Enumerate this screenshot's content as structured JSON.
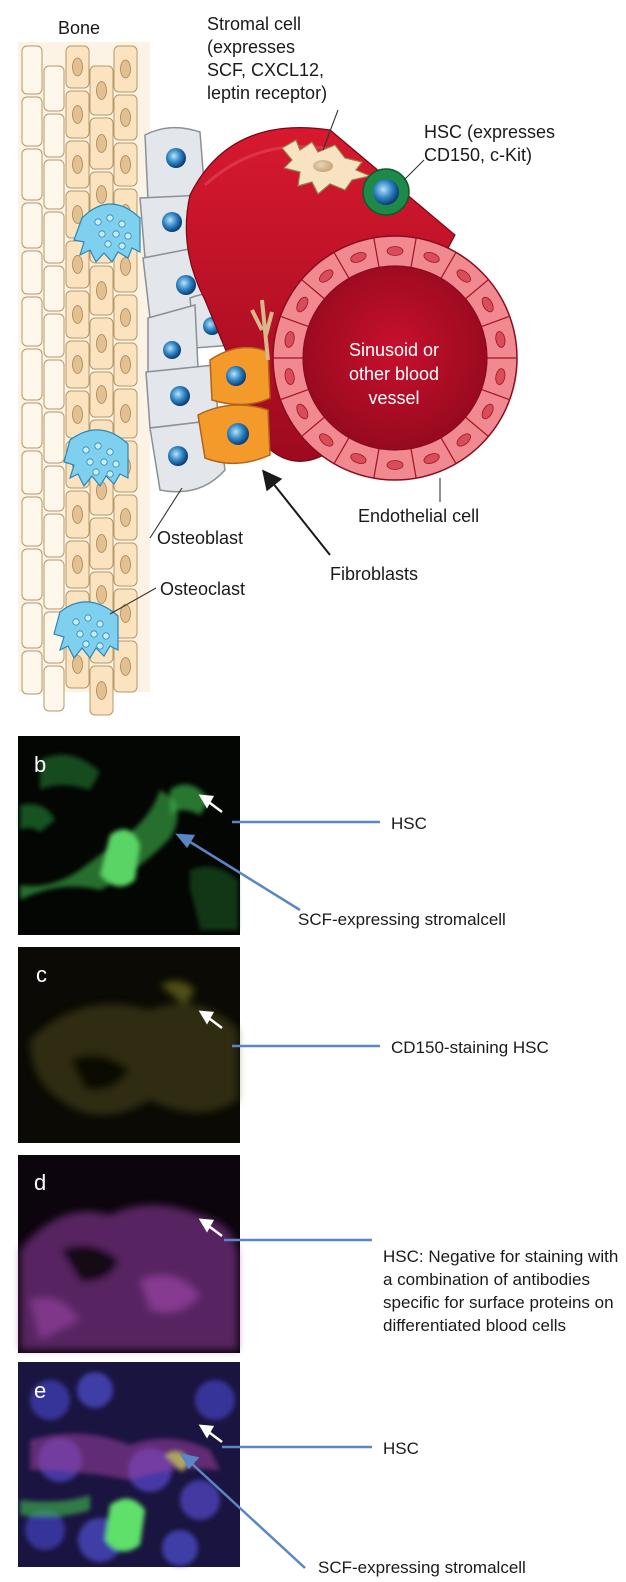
{
  "labels": {
    "bone": "Bone",
    "stromal": [
      "Stromal cell",
      "(expresses",
      "SCF, CXCL12,",
      "leptin receptor)"
    ],
    "hsc": [
      "HSC (expresses",
      "CD150, c-Kit)"
    ],
    "vessel": [
      "Sinusoid or",
      "other blood",
      "vessel"
    ],
    "endothelial": "Endothelial cell",
    "osteoblast": "Osteoblast",
    "osteoclast": "Osteoclast",
    "fibroblasts": "Fibroblasts"
  },
  "panels": [
    {
      "letter": "b",
      "captions": [
        "HSC",
        "SCF-expressing stromalcell"
      ]
    },
    {
      "letter": "c",
      "captions": [
        "CD150-staining HSC"
      ]
    },
    {
      "letter": "d",
      "captions": [
        "HSC: Negative for staining with",
        "a combination of antibodies",
        "specific for surface proteins on",
        "differentiated blood cells"
      ]
    },
    {
      "letter": "e",
      "captions": [
        "HSC",
        "SCF-expressing stromalcell"
      ]
    }
  ],
  "colors": {
    "vessel": "#c8102e",
    "vessel_lumen": "#b00d25",
    "endothelium": "#e8606a",
    "stroma": "#fbe9cf",
    "osteoblast": "#e3e6ea",
    "fibroblast": "#f39a2b",
    "osteoclast": "#7fd0ee",
    "hsc": "#1e8a4a",
    "pointer": "#5b86c4"
  }
}
